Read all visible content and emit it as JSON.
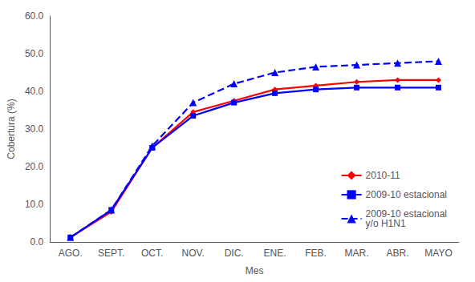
{
  "chart_data": {
    "type": "line",
    "xlabel": "Mes",
    "ylabel": "Cobertura (%)",
    "categories": [
      "AGO.",
      "SEPT.",
      "OCT.",
      "NOV.",
      "DIC.",
      "ENE.",
      "FEB.",
      "MAR.",
      "ABR.",
      "MAYO"
    ],
    "series": [
      {
        "name": "2010-11",
        "color": "#FF0000",
        "marker": "diamond",
        "line_style": "solid",
        "values": [
          1.2,
          8.0,
          25.0,
          34.5,
          37.5,
          40.5,
          41.5,
          42.5,
          43.0,
          43.0
        ]
      },
      {
        "name": "2009-10 estacional",
        "color": "#0000FF",
        "marker": "square",
        "line_style": "solid",
        "values": [
          1.2,
          8.5,
          25.0,
          33.5,
          37.0,
          39.5,
          40.5,
          41.0,
          41.0,
          41.0
        ]
      },
      {
        "name": "2009-10 estacional\ny/o H1N1",
        "color": "#0000FF",
        "marker": "triangle",
        "line_style": "dashed",
        "values": [
          1.2,
          8.5,
          25.5,
          37.0,
          42.0,
          45.0,
          46.5,
          47.0,
          47.5,
          48.0
        ]
      }
    ],
    "ylim": [
      0.0,
      60.0
    ],
    "yticks": [
      {
        "value": 0,
        "label": "0.0"
      },
      {
        "value": 10,
        "label": "10.0"
      },
      {
        "value": 20,
        "label": "20.0"
      },
      {
        "value": 30,
        "label": "30.0"
      },
      {
        "value": 40,
        "label": "40.0"
      },
      {
        "value": 50,
        "label": "50.0"
      },
      {
        "value": 60,
        "label": "60.0"
      }
    ],
    "grid": false,
    "legend": "right"
  }
}
